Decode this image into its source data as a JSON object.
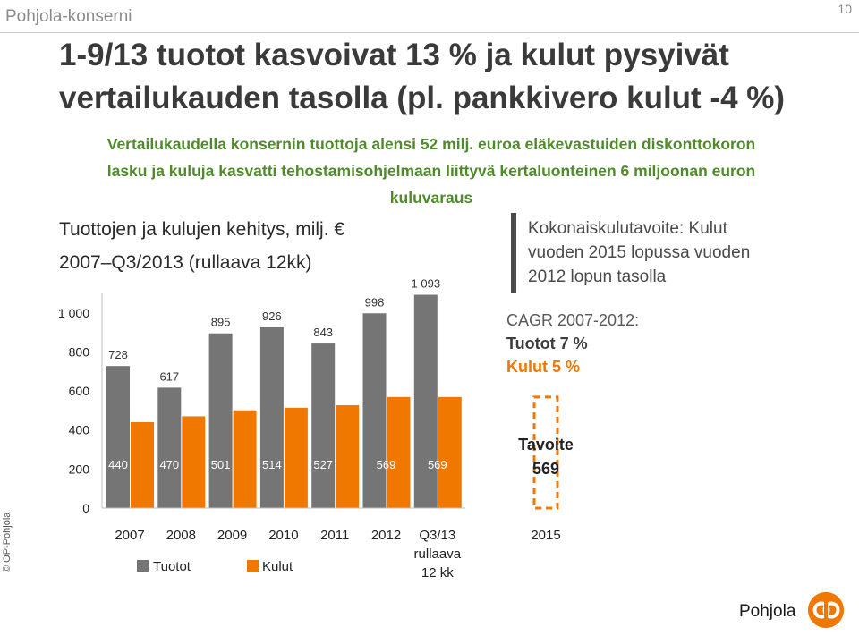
{
  "header": {
    "brand": "Pohjola-konserni",
    "page_number": "10",
    "title_line1": "1-9/13 tuotot kasvoivat 13 % ja kulut pysyivät",
    "title_line2": "vertailukauden tasolla (pl. pankkivero kulut -4 %)",
    "subtitle_line1": "Vertailukaudella konsernin tuottoja alensi 52 milj. euroa eläkevastuiden diskonttokoron",
    "subtitle_line2": "lasku ja kuluja kasvatti tehostamisohjelmaan liittyvä kertaluonteinen 6 miljoonan euron",
    "subtitle_line3": "kuluvaraus"
  },
  "chart_heading": {
    "line1": "Tuottojen ja kulujen kehitys, milj. €",
    "line2": "2007–Q3/2013 (rullaava 12kk)"
  },
  "side_notes": {
    "target_line1": "Kokonaiskulutavoite: Kulut",
    "target_line2": "vuoden 2015 lopussa vuoden",
    "target_line3": "2012 lopun tasolla",
    "cagr_title": "CAGR 2007-2012:",
    "cagr_income": "Tuotot 7 %",
    "cagr_costs": "Kulut 5 %"
  },
  "colors": {
    "income": "#757575",
    "costs": "#f07800",
    "target_outline": "#f07800",
    "accent_green": "#4f8a2b"
  },
  "chart_data": {
    "type": "bar",
    "categories": [
      "2007",
      "2008",
      "2009",
      "2010",
      "2011",
      "2012",
      "Q3/13"
    ],
    "category_sublabels": [
      "rullaava",
      "12 kk"
    ],
    "series": [
      {
        "name": "Tuotot",
        "values": [
          728,
          617,
          895,
          926,
          843,
          998,
          1093
        ],
        "labels": [
          "728",
          "617",
          "895",
          "926",
          "843",
          "998",
          "1 093"
        ]
      },
      {
        "name": "Kulut",
        "values": [
          440,
          470,
          501,
          514,
          527,
          569,
          569
        ],
        "labels": [
          "440",
          "470",
          "501",
          "514",
          "527",
          "569",
          "569"
        ]
      }
    ],
    "target": {
      "category": "2015",
      "value": 569,
      "label_line1": "Tavoite",
      "label_line2": "569"
    },
    "yticks": [
      0,
      200,
      400,
      600,
      800,
      1000
    ],
    "ytick_labels": [
      "0",
      "200",
      "400",
      "600",
      "800",
      "1 000"
    ],
    "ylim": [
      0,
      1100
    ],
    "legend_position": "bottom-left",
    "grid": false
  },
  "footer": {
    "copyright": "© OP-Pohjola",
    "logo_text": "Pohjola",
    "logo_icon": "op-logo-icon"
  }
}
